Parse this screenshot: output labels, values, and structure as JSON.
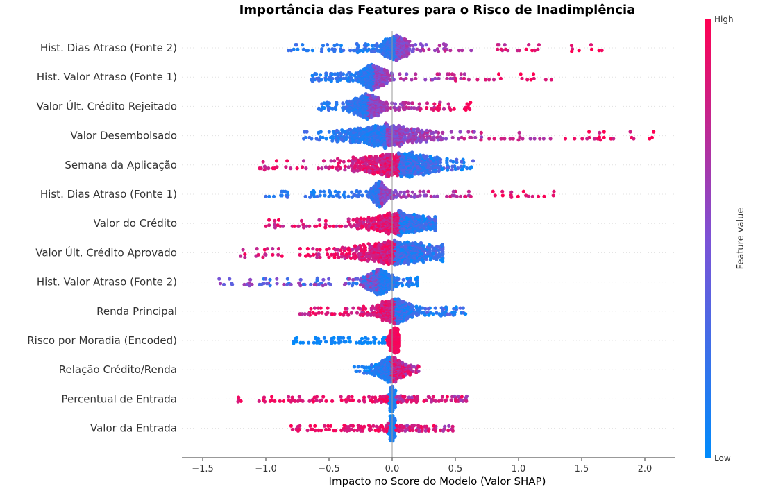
{
  "chart_data": {
    "type": "scatter",
    "subtype": "shap-beeswarm",
    "title": "Importância das Features para o Risco de Inadimplência",
    "xlabel": "Impacto no Score do Modelo (Valor SHAP)",
    "xlim": [
      -1.5,
      2.25
    ],
    "xticks": [
      -1.5,
      -1.0,
      -0.5,
      0.0,
      0.5,
      1.0,
      1.5,
      2.0
    ],
    "xtick_labels": [
      "−1.5",
      "−1.0",
      "−0.5",
      "0.0",
      "0.5",
      "1.0",
      "1.5",
      "2.0"
    ],
    "colorbar": {
      "title": "Feature value",
      "high_label": "High",
      "low_label": "Low",
      "low_color": "#008bfb",
      "high_color": "#ff0052"
    },
    "features": [
      {
        "name": "Hist. Dias Atraso (Fonte 2)",
        "min": -0.82,
        "max": 1.66,
        "center": 0.03,
        "spread": 0.06,
        "mode": "pos_high"
      },
      {
        "name": "Hist. Valor Atraso (Fonte 1)",
        "min": -0.64,
        "max": 1.26,
        "center": -0.15,
        "spread": 0.05,
        "mode": "pos_high"
      },
      {
        "name": "Valor Últ. Crédito Rejeitado",
        "min": -0.58,
        "max": 0.62,
        "center": -0.19,
        "spread": 0.06,
        "mode": "pos_high"
      },
      {
        "name": "Valor Desembolsado",
        "min": -0.7,
        "max": 2.07,
        "center": -0.05,
        "spread": 0.18,
        "mode": "pos_high"
      },
      {
        "name": "Semana da Aplicação",
        "min": -1.05,
        "max": 0.64,
        "center": 0.05,
        "spread": 0.18,
        "mode": "neg_high"
      },
      {
        "name": "Hist. Dias Atraso (Fonte 1)",
        "min": -1.0,
        "max": 1.28,
        "center": -0.1,
        "spread": 0.03,
        "mode": "pos_high"
      },
      {
        "name": "Valor do Crédito",
        "min": -1.0,
        "max": 0.34,
        "center": 0.05,
        "spread": 0.15,
        "mode": "neg_high"
      },
      {
        "name": "Valor Últ. Crédito Aprovado",
        "min": -1.2,
        "max": 0.4,
        "center": 0.02,
        "spread": 0.18,
        "mode": "neg_high"
      },
      {
        "name": "Hist. Valor Atraso (Fonte 2)",
        "min": -1.37,
        "max": 0.2,
        "center": -0.1,
        "spread": 0.05,
        "mode": "mixed_low_neg"
      },
      {
        "name": "Renda Principal",
        "min": -0.73,
        "max": 0.58,
        "center": 0.02,
        "spread": 0.07,
        "mode": "neg_high"
      },
      {
        "name": "Risco por Moradia (Encoded)",
        "min": -0.78,
        "max": 0.05,
        "center": 0.02,
        "spread": 0.02,
        "mode": "neg_low"
      },
      {
        "name": "Relação Crédito/Renda",
        "min": -0.3,
        "max": 0.21,
        "center": -0.01,
        "spread": 0.05,
        "mode": "pos_high_small"
      },
      {
        "name": "Percentual de Entrada",
        "min": -1.22,
        "max": 0.59,
        "center": 0.0,
        "spread": 0.01,
        "mode": "neg_high_line"
      },
      {
        "name": "Valor da Entrada",
        "min": -0.8,
        "max": 0.48,
        "center": 0.0,
        "spread": 0.01,
        "mode": "neg_high_line"
      }
    ]
  }
}
